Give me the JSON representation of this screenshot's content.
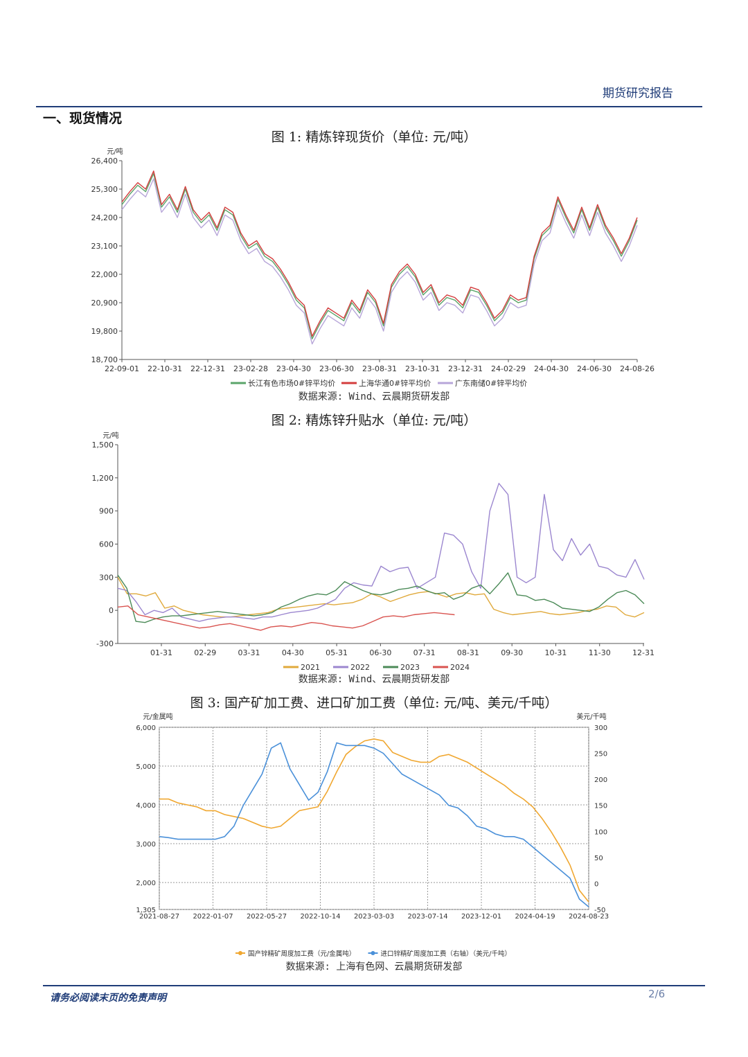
{
  "header": {
    "title": "期货研究报告"
  },
  "section": {
    "title": "一、现货情况"
  },
  "footer": {
    "note": "请务必阅读末页的免责声明",
    "page": "2/6"
  },
  "chart_data": [
    {
      "id": "fig1",
      "type": "line",
      "title": "图 1: 精炼锌现货价（单位: 元/吨）",
      "source": "数据来源: Wind、云晨期货研发部",
      "yunit": "元/吨",
      "ylim": [
        18700,
        26400
      ],
      "yticks": [
        "18,700",
        "19,800",
        "20,900",
        "22,000",
        "23,100",
        "24,200",
        "25,300",
        "26,400"
      ],
      "xticks": [
        "22-09-01",
        "22-10-31",
        "22-12-31",
        "23-02-28",
        "23-04-30",
        "23-06-30",
        "23-08-31",
        "23-10-31",
        "23-12-31",
        "24-02-29",
        "24-04-30",
        "24-06-30",
        "24-08-26"
      ],
      "legend_position": "bottom",
      "series": [
        {
          "name": "长江有色市场0#锌平均价",
          "color": "#5aa469",
          "values": [
            24700,
            25100,
            25450,
            25200,
            25900,
            24600,
            25000,
            24400,
            25300,
            24400,
            24000,
            24300,
            23700,
            24500,
            24300,
            23500,
            23000,
            23200,
            22700,
            22500,
            22100,
            21600,
            21000,
            20700,
            19500,
            20100,
            20600,
            20400,
            20200,
            20900,
            20500,
            21300,
            20900,
            20000,
            21500,
            22000,
            22300,
            21900,
            21200,
            21500,
            20800,
            21100,
            21000,
            20700,
            21400,
            21300,
            20800,
            20200,
            20500,
            21100,
            20900,
            21000,
            22600,
            23500,
            23800,
            24900,
            24200,
            23600,
            24500,
            23700,
            24600,
            23800,
            23300,
            22700,
            23300,
            24100
          ]
        },
        {
          "name": "上海华通0#锌平均价",
          "color": "#d33d3d",
          "values": [
            24800,
            25200,
            25550,
            25300,
            26000,
            24700,
            25100,
            24500,
            25400,
            24500,
            24100,
            24400,
            23800,
            24600,
            24400,
            23600,
            23100,
            23300,
            22800,
            22600,
            22200,
            21700,
            21100,
            20800,
            19600,
            20200,
            20700,
            20500,
            20300,
            21000,
            20600,
            21400,
            21000,
            20100,
            21600,
            22100,
            22400,
            22000,
            21300,
            21600,
            20900,
            21200,
            21100,
            20800,
            21500,
            21400,
            20900,
            20300,
            20600,
            21200,
            21000,
            21100,
            22700,
            23600,
            23900,
            25000,
            24300,
            23700,
            24600,
            23800,
            24700,
            23900,
            23400,
            22800,
            23400,
            24200
          ]
        },
        {
          "name": "广东南储0#锌平均价",
          "color": "#b7a6d9",
          "values": [
            24500,
            24900,
            25250,
            25000,
            25700,
            24400,
            24800,
            24200,
            25100,
            24200,
            23800,
            24100,
            23500,
            24300,
            24100,
            23300,
            22800,
            23000,
            22500,
            22300,
            21900,
            21400,
            20800,
            20500,
            19300,
            19900,
            20400,
            20200,
            20000,
            20700,
            20300,
            21100,
            20700,
            19800,
            21300,
            21800,
            22100,
            21700,
            21000,
            21300,
            20600,
            20900,
            20800,
            20500,
            21200,
            21100,
            20600,
            20000,
            20300,
            20900,
            20700,
            20800,
            22400,
            23300,
            23600,
            24700,
            24000,
            23400,
            24300,
            23500,
            24400,
            23600,
            23100,
            22500,
            23100,
            23900
          ]
        }
      ]
    },
    {
      "id": "fig2",
      "type": "line",
      "title": "图 2: 精炼锌升贴水（单位: 元/吨）",
      "source": "数据来源: Wind、云晨期货研发部",
      "yunit": "元/吨",
      "ylim": [
        -300,
        1500
      ],
      "yticks": [
        "-300",
        "0",
        "300",
        "600",
        "900",
        "1,200",
        "1,500"
      ],
      "xticks": [
        "01-31",
        "02-29",
        "03-31",
        "04-30",
        "05-31",
        "06-30",
        "07-31",
        "08-31",
        "09-30",
        "10-31",
        "11-30",
        "12-31"
      ],
      "legend_position": "bottom",
      "series": [
        {
          "name": "2021",
          "color": "#e0a93b",
          "values": [
            300,
            150,
            150,
            130,
            160,
            20,
            40,
            0,
            -20,
            -40,
            -50,
            -60,
            -60,
            -50,
            -40,
            -30,
            -20,
            10,
            20,
            30,
            40,
            50,
            60,
            50,
            60,
            70,
            100,
            150,
            120,
            80,
            110,
            140,
            160,
            170,
            150,
            120,
            150,
            160,
            140,
            150,
            10,
            -20,
            -40,
            -30,
            -20,
            -10,
            -30,
            -40,
            -30,
            -20,
            0,
            10,
            40,
            30,
            -40,
            -60,
            -20
          ]
        },
        {
          "name": "2022",
          "color": "#9b86cf",
          "values": [
            200,
            180,
            80,
            -40,
            0,
            -20,
            20,
            -60,
            -80,
            -100,
            -80,
            -70,
            -60,
            -60,
            -70,
            -80,
            -60,
            -60,
            -40,
            -20,
            -10,
            0,
            20,
            60,
            100,
            200,
            250,
            230,
            220,
            400,
            350,
            380,
            390,
            200,
            250,
            300,
            700,
            680,
            600,
            350,
            200,
            900,
            1150,
            1050,
            300,
            250,
            300,
            1050,
            550,
            450,
            650,
            500,
            600,
            400,
            380,
            320,
            300,
            460,
            280
          ]
        },
        {
          "name": "2023",
          "color": "#4b8a57",
          "values": [
            320,
            200,
            -100,
            -110,
            -80,
            -60,
            -50,
            -50,
            -40,
            -30,
            -20,
            -10,
            -20,
            -30,
            -40,
            -50,
            -40,
            -20,
            30,
            60,
            100,
            130,
            150,
            140,
            180,
            260,
            220,
            180,
            150,
            140,
            160,
            190,
            200,
            220,
            180,
            150,
            160,
            100,
            130,
            200,
            230,
            150,
            240,
            340,
            140,
            130,
            90,
            100,
            70,
            20,
            10,
            0,
            -10,
            30,
            100,
            160,
            180,
            140,
            60
          ]
        },
        {
          "name": "2024",
          "color": "#d9534f",
          "values": [
            30,
            40,
            -40,
            -60,
            -80,
            -100,
            -120,
            -140,
            -160,
            -150,
            -130,
            -120,
            -140,
            -160,
            -180,
            -150,
            -140,
            -150,
            -130,
            -110,
            -120,
            -140,
            -150,
            -160,
            -140,
            -100,
            -60,
            -50,
            -60,
            -40,
            -30,
            -20,
            -30,
            -40
          ]
        }
      ]
    },
    {
      "id": "fig3",
      "type": "line",
      "title": "图 3: 国产矿加工费、进口矿加工费（单位: 元/吨、美元/千吨）",
      "source": "数据来源: 上海有色网、云晨期货研发部",
      "y_left_unit": "元/金属吨",
      "y_right_unit": "美元/千吨",
      "ylim_left": [
        1305,
        6000
      ],
      "ylim_right": [
        -50,
        300
      ],
      "yticks_left": [
        "1,305",
        "2,000",
        "3,000",
        "4,000",
        "5,000",
        "6,000"
      ],
      "yticks_right": [
        "-50",
        "0",
        "50",
        "100",
        "150",
        "200",
        "250",
        "300"
      ],
      "xticks": [
        "2021-08-27",
        "2022-01-07",
        "2022-05-27",
        "2022-10-14",
        "2023-03-03",
        "2023-07-14",
        "2023-12-01",
        "2024-04-19",
        "2024-08-23"
      ],
      "legend_position": "bottom",
      "series": [
        {
          "name": "国产锌精矿周度加工费（元/金属吨）",
          "color": "#f0a730",
          "axis": "left",
          "values": [
            4150,
            4150,
            4050,
            4000,
            3950,
            3850,
            3850,
            3750,
            3700,
            3650,
            3550,
            3450,
            3400,
            3450,
            3650,
            3850,
            3900,
            3950,
            4350,
            4850,
            5300,
            5500,
            5650,
            5700,
            5650,
            5350,
            5250,
            5150,
            5100,
            5100,
            5250,
            5300,
            5200,
            5100,
            4950,
            4800,
            4650,
            4500,
            4300,
            4150,
            3950,
            3650,
            3300,
            2900,
            2450,
            1800,
            1500
          ]
        },
        {
          "name": "进口锌精矿周度加工费（右轴）（美元/千吨）",
          "color": "#4a90d9",
          "axis": "right",
          "values": [
            90,
            88,
            85,
            85,
            85,
            85,
            85,
            90,
            110,
            150,
            180,
            210,
            260,
            270,
            220,
            190,
            160,
            175,
            215,
            270,
            265,
            265,
            265,
            260,
            250,
            230,
            210,
            200,
            190,
            180,
            170,
            150,
            145,
            130,
            110,
            105,
            95,
            90,
            90,
            85,
            70,
            55,
            40,
            25,
            10,
            -30,
            -45
          ]
        }
      ],
      "legend_labels": [
        "国产锌精矿周度加工费（元/金属吨）",
        "进口锌精矿周度加工费（右轴）（美元/千吨）"
      ]
    }
  ]
}
